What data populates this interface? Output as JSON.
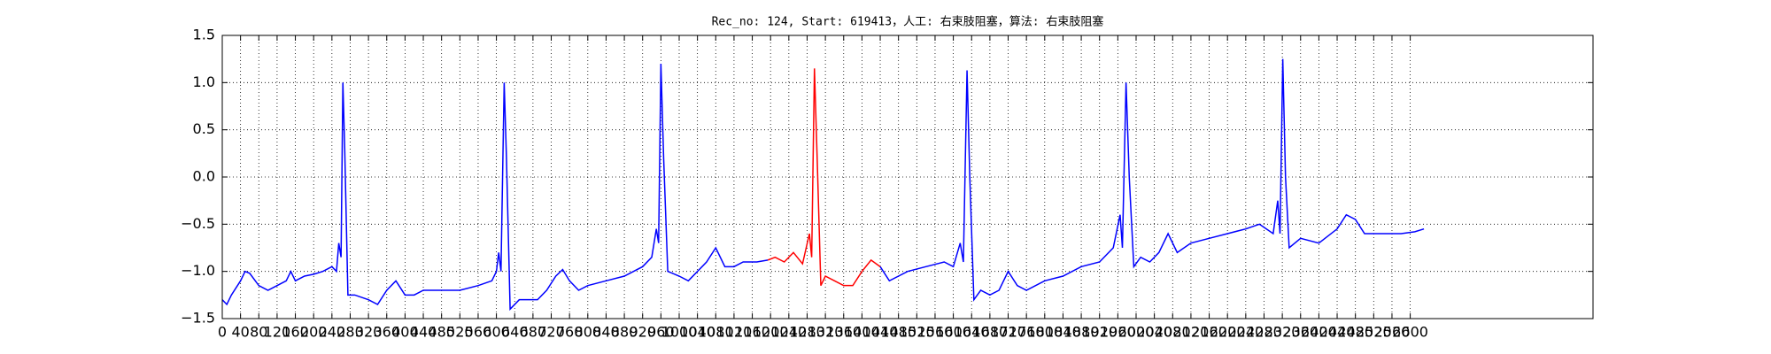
{
  "chart_data": {
    "type": "line",
    "title": "Rec_no: 124, Start: 619413，人工: 右束肢阻塞，算法: 右束肢阻塞",
    "xlim": [
      0,
      3000
    ],
    "ylim": [
      -1.5,
      1.5
    ],
    "xticks": [
      0,
      40,
      80,
      120,
      160,
      200,
      240,
      280,
      320,
      360,
      400,
      440,
      480,
      520,
      560,
      600,
      640,
      680,
      720,
      760,
      800,
      840,
      880,
      920,
      960,
      1000,
      1040,
      1080,
      1120,
      1160,
      1200,
      1240,
      1280,
      1320,
      1360,
      1400,
      1440,
      1480,
      1520,
      1560,
      1600,
      1640,
      1680,
      1720,
      1760,
      1800,
      1840,
      1880,
      1920,
      1960,
      2000,
      2040,
      2080,
      2120,
      2160,
      2200,
      2240,
      2280,
      2320,
      2360,
      2400,
      2440,
      2480,
      2520,
      2560,
      2600
    ],
    "yticks": [
      {
        "value": -1.5,
        "label": "−1.5"
      },
      {
        "value": -1.0,
        "label": "−1.0"
      },
      {
        "value": -0.5,
        "label": "−0.5"
      },
      {
        "value": 0,
        "label": "0.0"
      },
      0.5,
      {
        "value": 1.0,
        "label": "1.0"
      },
      1.5
    ],
    "grid": true,
    "series": [
      {
        "color": "#0000ff",
        "x": [
          0,
          10,
          20,
          40,
          50,
          60,
          80,
          100,
          120,
          140,
          150,
          160,
          180,
          200,
          220,
          240,
          250,
          255,
          260,
          264,
          268,
          275,
          290,
          320,
          340,
          360,
          380,
          400,
          420,
          440,
          480,
          520,
          560,
          590,
          600,
          605,
          610,
          617,
          622,
          630,
          650,
          690,
          710,
          730,
          745,
          760,
          780,
          800,
          840,
          880,
          920,
          940,
          950,
          955,
          960,
          966,
          975,
          1000,
          1020,
          1060,
          1080,
          1100,
          1120,
          1140,
          1170,
          1194,
          null,
          1440,
          1460,
          1480,
          1500,
          1540,
          1580,
          1600,
          1615,
          1622,
          1630,
          1636,
          1645,
          1660,
          1680,
          1700,
          1720,
          1740,
          1760,
          1800,
          1840,
          1880,
          1920,
          1950,
          1965,
          1970,
          1978,
          1985,
          1995,
          2010,
          2030,
          2050,
          2070,
          2090,
          2120,
          2160,
          2200,
          2240,
          2270,
          2300,
          2310,
          2315,
          2321,
          2327,
          2335,
          2360,
          2400,
          2440,
          2460,
          2480,
          2500,
          2540,
          2580,
          2610,
          2630
        ],
        "values": [
          -1.3,
          -1.35,
          -1.25,
          -1.1,
          -1.0,
          -1.02,
          -1.15,
          -1.2,
          -1.15,
          -1.1,
          -1.0,
          -1.1,
          -1.05,
          -1.03,
          -1.0,
          -0.95,
          -1.0,
          -0.7,
          -0.85,
          1.0,
          0.3,
          -1.25,
          -1.25,
          -1.3,
          -1.35,
          -1.2,
          -1.1,
          -1.25,
          -1.25,
          -1.2,
          -1.2,
          -1.2,
          -1.15,
          -1.1,
          -1.0,
          -0.8,
          -1.0,
          1.0,
          0.2,
          -1.4,
          -1.3,
          -1.3,
          -1.2,
          -1.05,
          -0.98,
          -1.1,
          -1.2,
          -1.15,
          -1.1,
          -1.05,
          -0.95,
          -0.85,
          -0.55,
          -0.7,
          1.2,
          0.2,
          -1.0,
          -1.05,
          -1.1,
          -0.9,
          -0.75,
          -0.95,
          -0.95,
          -0.9,
          -0.9,
          -0.88,
          null,
          -0.95,
          -1.1,
          -1.05,
          -1.0,
          -0.95,
          -0.9,
          -0.95,
          -0.7,
          -0.9,
          1.13,
          0.0,
          -1.3,
          -1.2,
          -1.25,
          -1.2,
          -1.0,
          -1.15,
          -1.2,
          -1.1,
          -1.05,
          -0.95,
          -0.9,
          -0.75,
          -0.4,
          -0.75,
          1.0,
          0.0,
          -0.95,
          -0.85,
          -0.9,
          -0.8,
          -0.6,
          -0.8,
          -0.7,
          -0.65,
          -0.6,
          -0.55,
          -0.5,
          -0.6,
          -0.25,
          -0.6,
          1.25,
          0.0,
          -0.75,
          -0.65,
          -0.7,
          -0.55,
          -0.4,
          -0.45,
          -0.6,
          -0.6,
          -0.6,
          -0.58,
          -0.55
        ]
      },
      {
        "color": "#ff0000",
        "x": [
          1194,
          1210,
          1230,
          1250,
          1270,
          1285,
          1290,
          1296,
          1302,
          1310,
          1320,
          1340,
          1360,
          1380,
          1400,
          1420,
          1440
        ],
        "values": [
          -0.88,
          -0.85,
          -0.9,
          -0.8,
          -0.92,
          -0.6,
          -0.85,
          1.15,
          0.2,
          -1.15,
          -1.05,
          -1.1,
          -1.15,
          -1.15,
          -1.0,
          -0.88,
          -0.95
        ]
      }
    ]
  }
}
